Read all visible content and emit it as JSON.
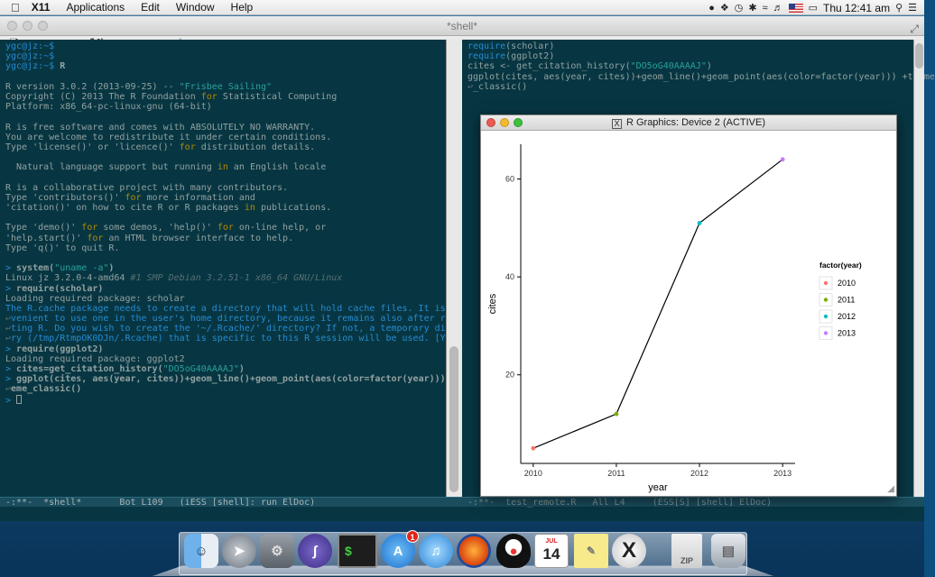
{
  "menubar": {
    "apple": "",
    "app_name": "X11",
    "menus": [
      "Applications",
      "Edit",
      "Window",
      "Help"
    ],
    "clock": "Thu 12:41 am"
  },
  "emacs": {
    "title": "*shell*",
    "toolbar_icons": [
      "new-file-icon",
      "open-folder-icon",
      "dired-icon",
      "kill-buffer-icon",
      "save-icon",
      "undo-icon",
      "cut-icon",
      "copy-icon",
      "paste-icon",
      "search-icon"
    ]
  },
  "left_pane": {
    "lines": [
      [
        {
          "t": "ygc@jz:~$",
          "c": "prompt"
        }
      ],
      [
        {
          "t": "ygc@jz:~$",
          "c": "prompt"
        }
      ],
      [
        {
          "t": "ygc@jz:~$ ",
          "c": "prompt"
        },
        {
          "t": "R",
          "c": "bold"
        }
      ],
      [],
      [
        {
          "t": "R version 3.0.2 (2013-09-25) -- "
        },
        {
          "t": "\"Frisbee Sailing\"",
          "c": "str"
        }
      ],
      [
        {
          "t": "Copyright (C) 2013 The R Foundation "
        },
        {
          "t": "for",
          "c": "kw"
        },
        {
          "t": " Statistical Computing"
        }
      ],
      [
        {
          "t": "Platform: x86_64-pc-linux-gnu (64-bit)"
        }
      ],
      [],
      [
        {
          "t": "R is free software and comes with ABSOLUTELY NO WARRANTY."
        }
      ],
      [
        {
          "t": "You are welcome to redistribute it under certain conditions."
        }
      ],
      [
        {
          "t": "Type 'license()' or 'licence()' "
        },
        {
          "t": "for",
          "c": "kw"
        },
        {
          "t": " distribution details."
        }
      ],
      [],
      [
        {
          "t": "  Natural language support but running "
        },
        {
          "t": "in",
          "c": "kw"
        },
        {
          "t": " an English locale"
        }
      ],
      [],
      [
        {
          "t": "R is a collaborative project with many contributors."
        }
      ],
      [
        {
          "t": "Type 'contributors()' "
        },
        {
          "t": "for",
          "c": "kw"
        },
        {
          "t": " more information and"
        }
      ],
      [
        {
          "t": "'citation()' on how to cite R or R packages "
        },
        {
          "t": "in",
          "c": "kw"
        },
        {
          "t": " publications."
        }
      ],
      [],
      [
        {
          "t": "Type 'demo()' "
        },
        {
          "t": "for",
          "c": "kw"
        },
        {
          "t": " some demos, 'help()' "
        },
        {
          "t": "for",
          "c": "kw"
        },
        {
          "t": " on-line help, or"
        }
      ],
      [
        {
          "t": "'help.start()' "
        },
        {
          "t": "for",
          "c": "kw"
        },
        {
          "t": " an HTML browser interface to help."
        }
      ],
      [
        {
          "t": "Type 'q()' to quit R."
        }
      ],
      [],
      [
        {
          "t": "> ",
          "c": "prompt"
        },
        {
          "t": "system(",
          "c": "bold"
        },
        {
          "t": "\"uname -a\"",
          "c": "str"
        },
        {
          "t": ")",
          "c": "bold"
        }
      ],
      [
        {
          "t": "Linux jz 3.2.0-4-amd64 "
        },
        {
          "t": "#1 SMP Debian 3.2.51-1 x86_64 GNU/Linux",
          "c": "cmt"
        }
      ],
      [
        {
          "t": "> ",
          "c": "prompt"
        },
        {
          "t": "require(scholar)",
          "c": "bold"
        }
      ],
      [
        {
          "t": "Loading required package: scholar"
        }
      ],
      [
        {
          "t": "The R.cache package needs to create a directory that will hold cache files. It is con",
          "c": "blue"
        }
      ],
      [
        {
          "t": "↩",
          "c": "cont"
        },
        {
          "t": "venient to use one in the user's home directory, because it remains also after restar",
          "c": "blue"
        }
      ],
      [
        {
          "t": "↩",
          "c": "cont"
        },
        {
          "t": "ting R. Do you wish to create the '~/.Rcache/' directory? If not, a temporary directo",
          "c": "blue"
        }
      ],
      [
        {
          "t": "↩",
          "c": "cont"
        },
        {
          "t": "ry (/tmp/RtmpOK0DJn/.Rcache) that is specific to this R session will be used. [Y/n]:",
          "c": "blue"
        }
      ],
      [
        {
          "t": "> ",
          "c": "prompt"
        },
        {
          "t": "require(ggplot2)",
          "c": "bold"
        }
      ],
      [
        {
          "t": "Loading required package: ggplot2"
        }
      ],
      [
        {
          "t": "> ",
          "c": "prompt"
        },
        {
          "t": "cites=get_citation_history(",
          "c": "bold"
        },
        {
          "t": "\"DO5oG40AAAAJ\"",
          "c": "str"
        },
        {
          "t": ")",
          "c": "bold"
        }
      ],
      [
        {
          "t": "> ",
          "c": "prompt"
        },
        {
          "t": "ggplot(cites, aes(year, cites))+geom_line()+geom_point(aes(color=factor(year))) +th",
          "c": "bold"
        }
      ],
      [
        {
          "t": "↩",
          "c": "cont"
        },
        {
          "t": "eme_classic()",
          "c": "bold"
        }
      ],
      [
        {
          "t": "> ",
          "c": "prompt"
        },
        {
          "t": "",
          "c": "cursor"
        }
      ]
    ]
  },
  "right_pane": {
    "lines": [
      [
        {
          "t": "require",
          "c": "blue"
        },
        {
          "t": "(scholar)"
        }
      ],
      [
        {
          "t": "require",
          "c": "blue"
        },
        {
          "t": "(ggplot2)"
        }
      ],
      [
        {
          "t": "cites <- get_citation_history("
        },
        {
          "t": "\"DO5oG40AAAAJ\"",
          "c": "str"
        },
        {
          "t": ")"
        }
      ],
      [
        {
          "t": "ggplot(cites, aes(year, cites))+geom_line()+geom_point(aes(color=factor(year))) +theme"
        }
      ],
      [
        {
          "t": "↩",
          "c": "cont"
        },
        {
          "t": "_classic()"
        }
      ]
    ]
  },
  "modeline_left": "-:**-  *shell*       Bot L109   (iESS [shell]: run ElDoc)",
  "modeline_right": "-:**-  test_remote.R   All L4     (ESS[S] [shell] ElDoc)",
  "graphics_window": {
    "title": "R Graphics: Device 2 (ACTIVE)"
  },
  "chart_data": {
    "type": "line",
    "x": [
      2010,
      2011,
      2012,
      2013
    ],
    "y": [
      5,
      12,
      51,
      64
    ],
    "point_colors": [
      "#F8766D",
      "#7CAE00",
      "#00BFC4",
      "#C77CFF"
    ],
    "xlabel": "year",
    "ylabel": "cites",
    "xticks": [
      "2010",
      "2011",
      "2012",
      "2013"
    ],
    "yticks": [
      20,
      40,
      60
    ],
    "xlim": [
      2009.85,
      2013.15
    ],
    "ylim": [
      1.9,
      67.1
    ],
    "legend": {
      "title": "factor(year)",
      "entries": [
        "2010",
        "2011",
        "2012",
        "2013"
      ],
      "placement": "right"
    },
    "grid": false
  },
  "dock": {
    "calendar_day": "14",
    "calendar_month": "JUL",
    "appstore_badge": "1",
    "terminal_text": "$"
  }
}
